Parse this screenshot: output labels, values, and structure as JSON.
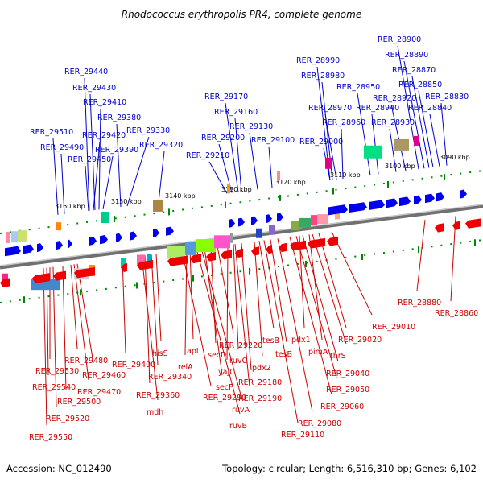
{
  "title": "Rhodococcus erythropolis PR4, complete genome",
  "accession": "Accession: NC_012490",
  "summary": "Topology: circular; Length: 6,516,310 bp; Genes: 6,102",
  "colors": {
    "forward_label": "#0000cc",
    "reverse_label": "#cc0000",
    "forward_gene": "#0000ee",
    "reverse_gene": "#ee0000",
    "tick": "#008800",
    "backbone": "#808080"
  },
  "ticks": [
    "3160 kbp",
    "3150 kbp",
    "3140 kbp",
    "3130 kbp",
    "3120 kbp",
    "3110 kbp",
    "3100 kbp",
    "3090 kbp"
  ],
  "forward_labels": [
    "RER_29440",
    "RER_29430",
    "RER_29410",
    "RER_29380",
    "RER_29420",
    "RER_29390",
    "RER_29330",
    "RER_29320",
    "RER_29510",
    "RER_29490",
    "RER_29450",
    "RER_29170",
    "RER_29160",
    "RER_29130",
    "RER_29200",
    "RER_29100",
    "RER_29210",
    "RER_28990",
    "RER_28980",
    "RER_28970",
    "RER_28960",
    "RER_29000",
    "RER_28950",
    "RER_28940",
    "RER_28930",
    "RER_28920",
    "RER_28900",
    "RER_28890",
    "RER_28870",
    "RER_28850",
    "RER_28830",
    "RER_28840"
  ],
  "reverse_labels": [
    "RER_28880",
    "RER_28860",
    "RER_29010",
    "RER_29020",
    "thrS",
    "pimA",
    "pdx1",
    "RER_29040",
    "RER_29050",
    "RER_29060",
    "RER_29080",
    "RER_29110",
    "tesB",
    "tesB",
    "pdx2",
    "RER_29180",
    "RER_29190",
    "ruvC",
    "yajC",
    "RER_29220",
    "secD",
    "secF",
    "ruvA",
    "ruvB",
    "apt",
    "relA",
    "RER_29290",
    "hisS",
    "RER_29340",
    "RER_29360",
    "mdh",
    "RER_29400",
    "RER_29460",
    "RER_29470",
    "RER_29480",
    "RER_29500",
    "RER_29520",
    "RER_29530",
    "RER_29540",
    "RER_29550"
  ]
}
